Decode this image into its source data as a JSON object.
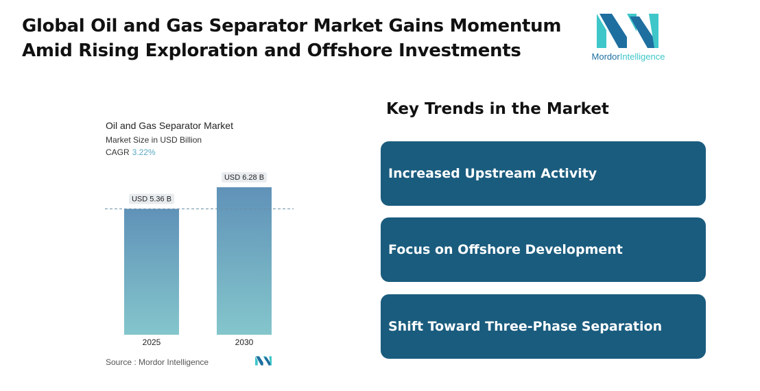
{
  "header": {
    "title_line1": "Global Oil and Gas Separator Market Gains Momentum",
    "title_line2": "Amid Rising Exploration and Offshore Investments"
  },
  "logo": {
    "text_primary": "Mordor",
    "text_secondary": "Intelligence",
    "icon": "mordor-intelligence-logo"
  },
  "chart_data": {
    "type": "bar",
    "title": "Oil and Gas Separator Market",
    "subtitle": "Market Size in USD Billion",
    "cagr_label": "CAGR",
    "cagr_value": "3.22%",
    "categories": [
      "2025",
      "2030"
    ],
    "values": [
      5.36,
      6.28
    ],
    "data_labels": [
      "USD 5.36 B",
      "USD 6.28 B"
    ],
    "ylim": [
      0,
      6.6
    ],
    "grid": false,
    "reference_line": 5.36,
    "colors": {
      "bar_top": "#6092b8",
      "bar_bottom": "#84c6cc"
    }
  },
  "source": {
    "label": "Source :",
    "value": "Mordor Intelligence"
  },
  "trends": {
    "title": "Key Trends in the Market",
    "items": [
      {
        "label": "Increased Upstream Activity"
      },
      {
        "label": "Focus on Offshore Development"
      },
      {
        "label": "Shift Toward Three-Phase Separation"
      }
    ]
  },
  "colors": {
    "card": "#1a5c7e",
    "brand_teal": "#3ec6c9",
    "brand_blue": "#1e6fa0"
  }
}
